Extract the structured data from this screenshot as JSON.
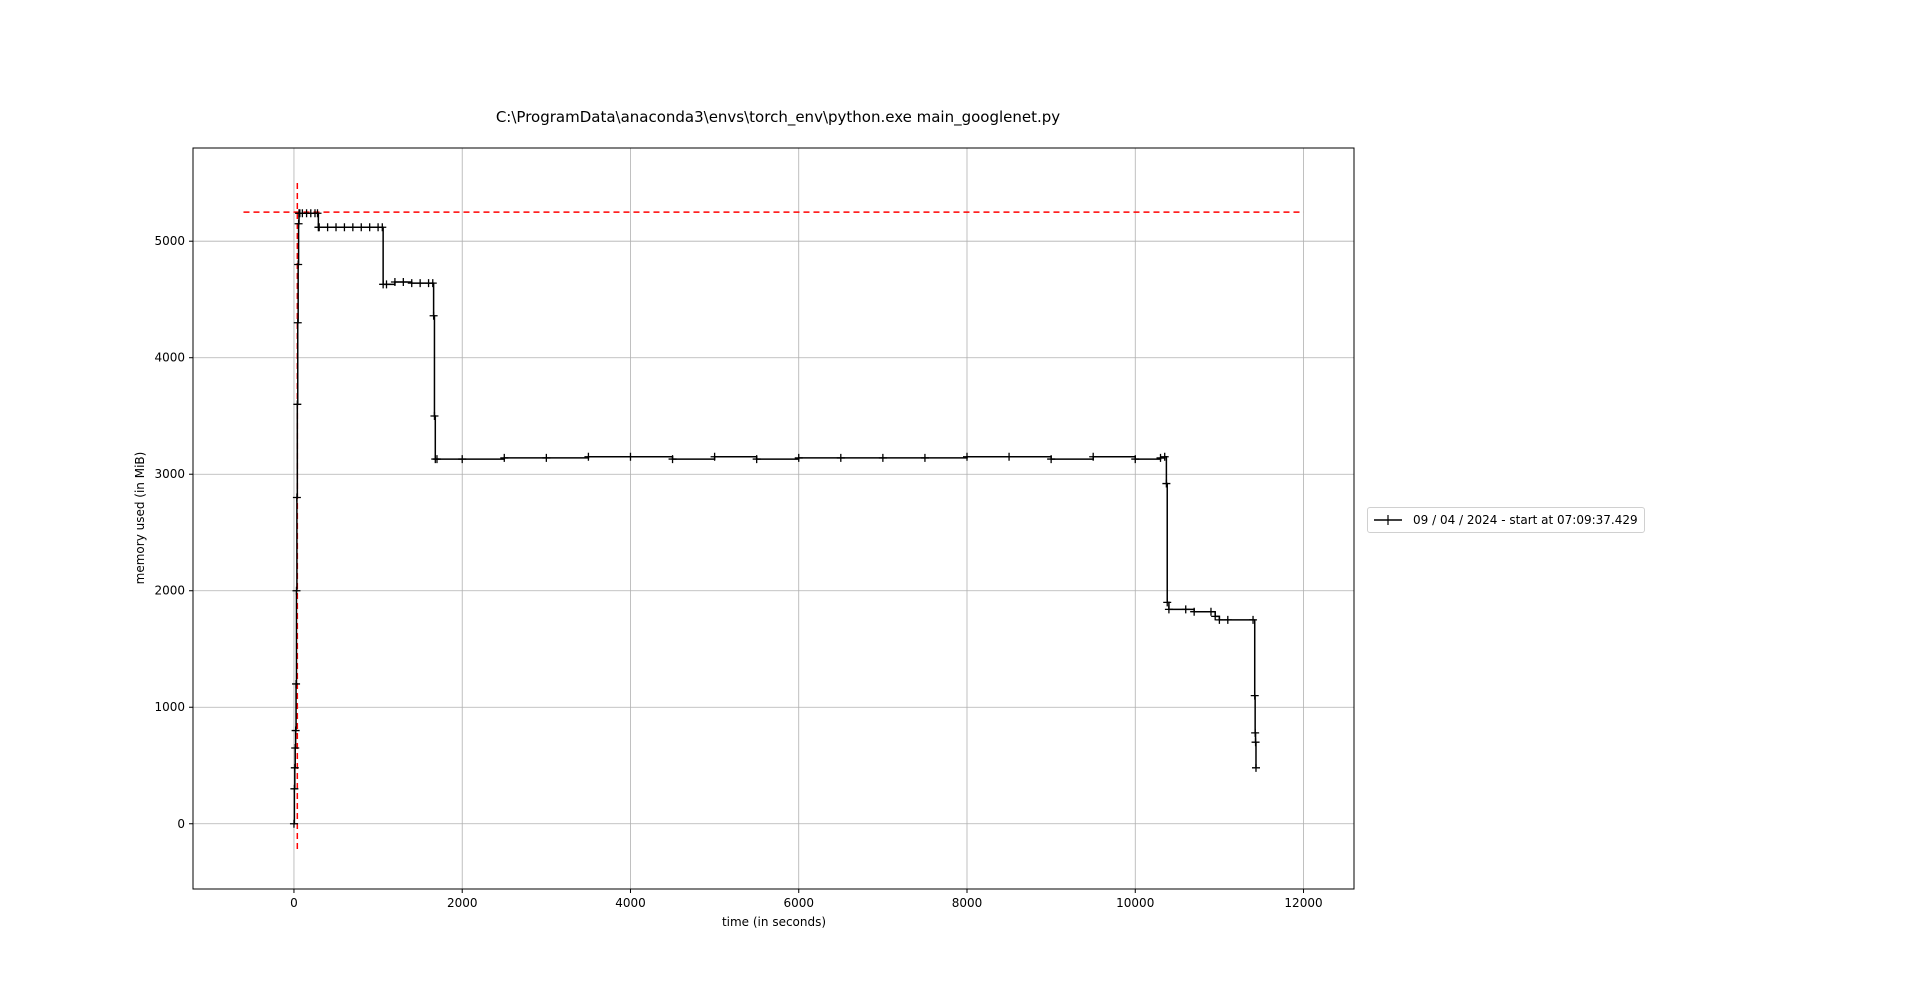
{
  "chart_data": {
    "type": "line",
    "title": "C:\\ProgramData\\anaconda3\\envs\\torch_env\\python.exe main_googlenet.py",
    "xlabel": "time (in seconds)",
    "ylabel": "memory used (in MiB)",
    "xlim": [
      -1200,
      12600
    ],
    "ylim": [
      -560,
      5800
    ],
    "xticks": [
      0,
      2000,
      4000,
      6000,
      8000,
      10000,
      12000
    ],
    "yticks": [
      0,
      1000,
      2000,
      3000,
      4000,
      5000
    ],
    "grid": true,
    "legend_position": "outside right",
    "colors": {
      "series": "#000000",
      "peak": "#ff0000",
      "grid": "#b0b0b0"
    },
    "series": [
      {
        "name": "09 / 04 / 2024 - start at 07:09:37.429",
        "marker": "+",
        "x": [
          0,
          5,
          10,
          15,
          20,
          25,
          30,
          35,
          40,
          45,
          50,
          55,
          60,
          70,
          100,
          150,
          200,
          250,
          280,
          290,
          300,
          400,
          500,
          600,
          700,
          800,
          900,
          1000,
          1050,
          1060,
          1100,
          1200,
          1300,
          1400,
          1500,
          1600,
          1650,
          1660,
          1670,
          1680,
          1700,
          2000,
          2500,
          3000,
          3500,
          4000,
          4500,
          5000,
          5500,
          6000,
          6500,
          7000,
          7500,
          8000,
          8500,
          9000,
          9500,
          10000,
          10300,
          10350,
          10370,
          10380,
          10400,
          10600,
          10700,
          10900,
          10950,
          11000,
          11100,
          11400,
          11420,
          11425,
          11430,
          11435
        ],
        "y": [
          0,
          300,
          480,
          650,
          800,
          1200,
          2000,
          2800,
          3600,
          4300,
          4800,
          5150,
          5240,
          5240,
          5240,
          5240,
          5240,
          5240,
          5240,
          5120,
          5120,
          5120,
          5120,
          5120,
          5120,
          5120,
          5120,
          5120,
          5120,
          4630,
          4630,
          4650,
          4650,
          4640,
          4640,
          4640,
          4640,
          4360,
          3500,
          3130,
          3130,
          3130,
          3140,
          3140,
          3150,
          3150,
          3130,
          3150,
          3130,
          3140,
          3140,
          3140,
          3140,
          3150,
          3150,
          3130,
          3150,
          3130,
          3140,
          3150,
          2920,
          1900,
          1840,
          1840,
          1820,
          1820,
          1780,
          1750,
          1750,
          1750,
          1100,
          780,
          700,
          480
        ]
      }
    ],
    "peak_lines": {
      "max_memory": 5250,
      "max_time": 40
    }
  },
  "legend": {
    "label": "09 / 04 / 2024 - start at 07:09:37.429"
  }
}
